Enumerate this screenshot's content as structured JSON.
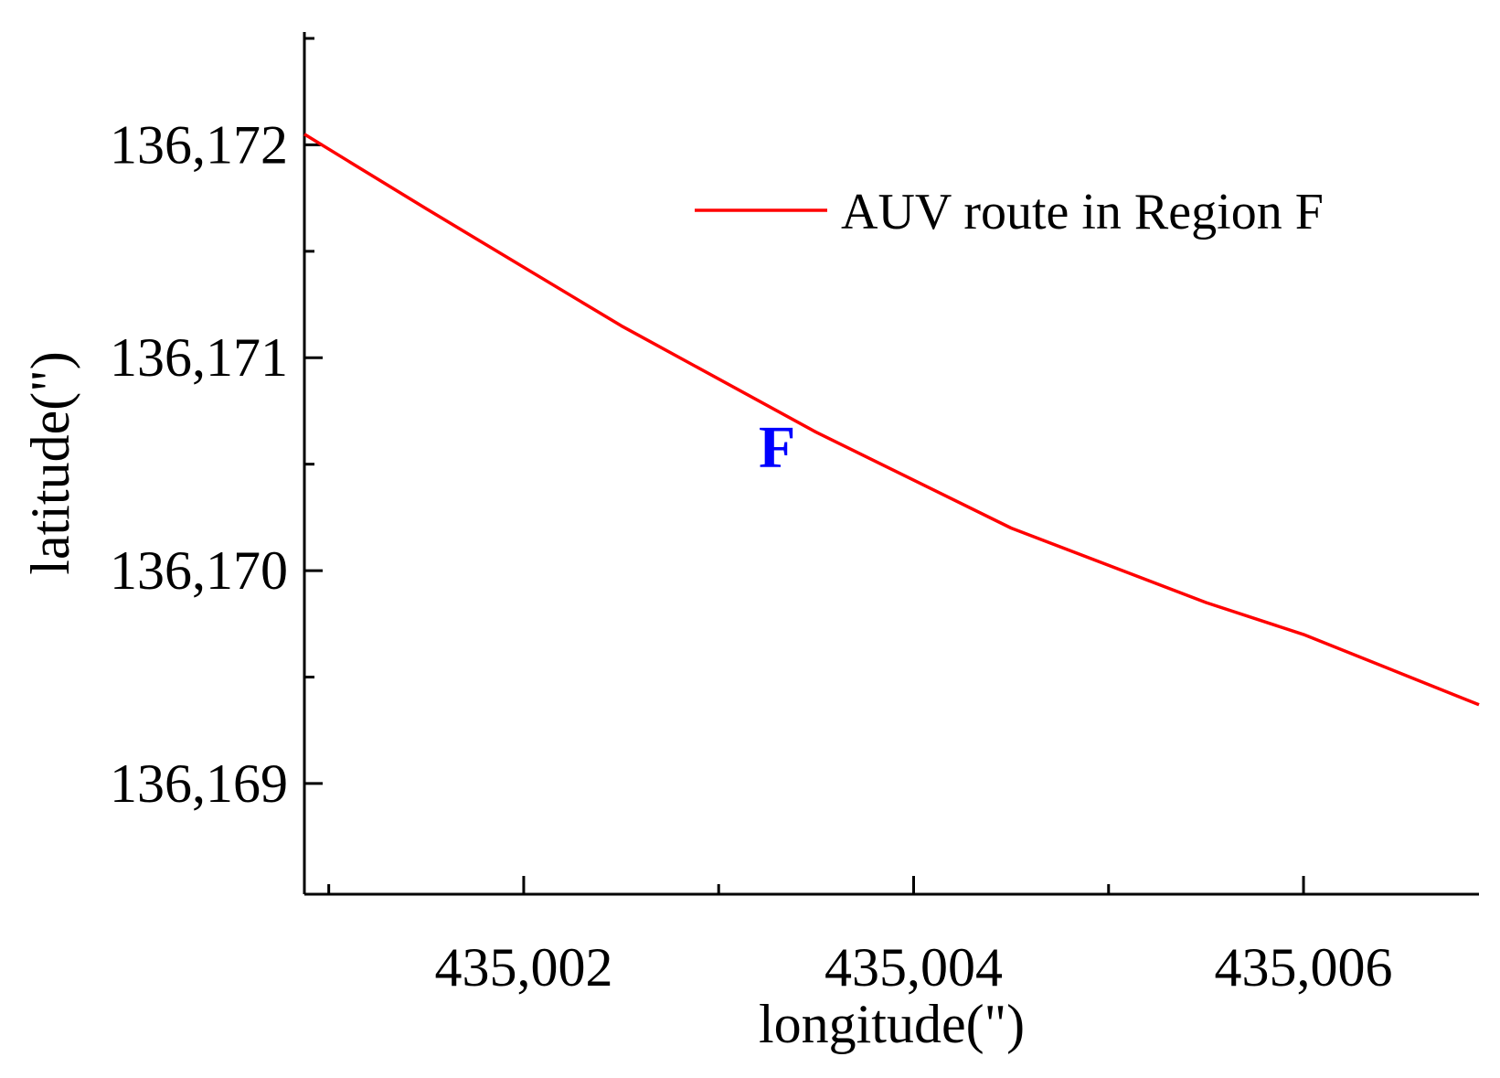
{
  "chart_data": {
    "type": "line",
    "title": "",
    "xlabel": "longitude(\")",
    "ylabel": "latitude(\")",
    "xlim": [
      435000.875,
      435006.9
    ],
    "ylim": [
      136168.48,
      136172.53
    ],
    "x_ticks": [
      {
        "value": 435002,
        "label": "435,002"
      },
      {
        "value": 435004,
        "label": "435,004"
      },
      {
        "value": 435006,
        "label": "435,006"
      }
    ],
    "x_minor_ticks": [
      435001,
      435003,
      435005
    ],
    "y_ticks": [
      {
        "value": 136169,
        "label": "136,169"
      },
      {
        "value": 136170,
        "label": "136,170"
      },
      {
        "value": 136171,
        "label": "136,171"
      },
      {
        "value": 136172,
        "label": "136,172"
      }
    ],
    "y_minor_ticks": [
      136169.5,
      136170.5,
      136171.5,
      136172.5
    ],
    "grid": false,
    "legend": {
      "position": "top-right",
      "entries": [
        {
          "label": "AUV route in Region F",
          "color": "#ff0000"
        }
      ]
    },
    "annotations": [
      {
        "text": "F",
        "x": 435003.3,
        "y": 136170.58,
        "color": "#0000ff"
      }
    ],
    "series": [
      {
        "name": "AUV route in Region F",
        "color": "#ff0000",
        "x": [
          435000.875,
          435001.5,
          435002.5,
          435003.5,
          435004.5,
          435005.5,
          435006.0,
          435006.9
        ],
        "y": [
          136172.05,
          136171.7,
          136171.15,
          136170.65,
          136170.2,
          136169.85,
          136169.7,
          136169.37
        ]
      }
    ]
  }
}
